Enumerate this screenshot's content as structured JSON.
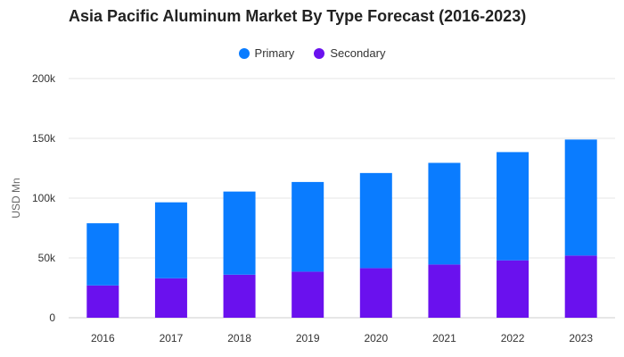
{
  "chart_data": {
    "type": "bar",
    "stacked": true,
    "title": "Asia Pacific Aluminum Market By Type Forecast (2016-2023)",
    "xlabel": "",
    "ylabel": "USD Mn",
    "ylim": [
      0,
      200000
    ],
    "yticks": [
      0,
      50000,
      100000,
      150000,
      200000
    ],
    "ytick_labels": [
      "0",
      "50k",
      "100k",
      "150k",
      "200k"
    ],
    "grid": true,
    "legend_position": "top-center",
    "categories": [
      "2016",
      "2017",
      "2018",
      "2019",
      "2020",
      "2021",
      "2022",
      "2023"
    ],
    "series": [
      {
        "name": "Secondary",
        "color": "#6a11ee",
        "values": [
          27000,
          33000,
          36000,
          38500,
          41500,
          44500,
          48000,
          52000
        ]
      },
      {
        "name": "Primary",
        "color": "#0a7cff",
        "values": [
          52000,
          63500,
          69500,
          75000,
          79500,
          85000,
          90500,
          97000
        ]
      }
    ],
    "legend_order": [
      "Primary",
      "Secondary"
    ]
  }
}
